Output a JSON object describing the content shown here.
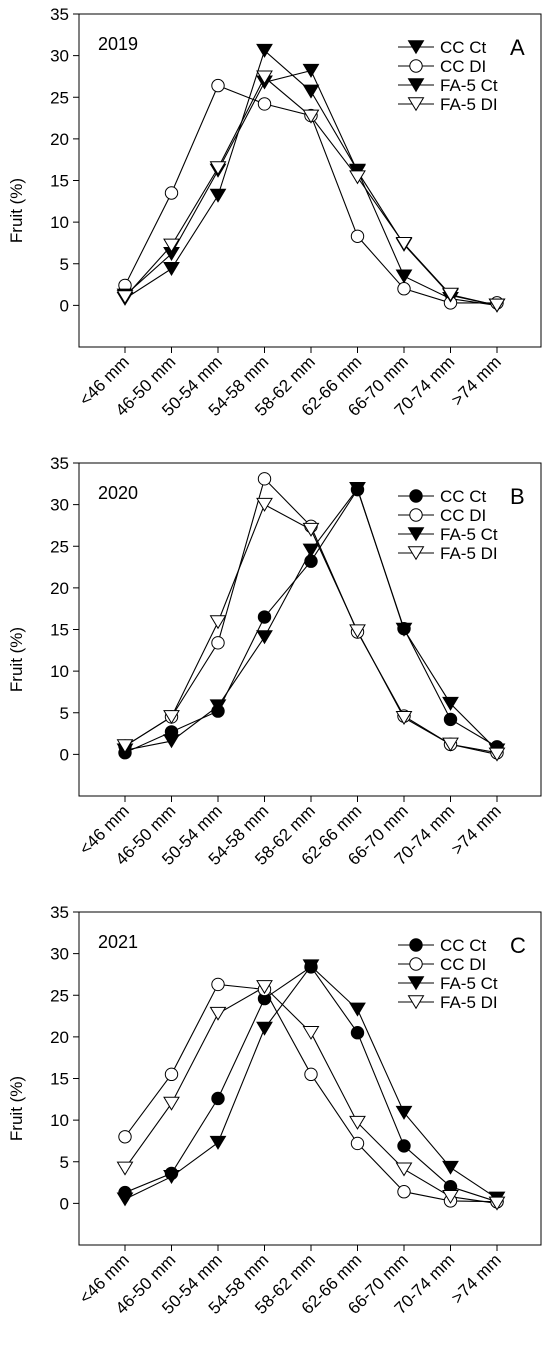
{
  "chart_data": [
    {
      "type": "line",
      "panel_letter": "A",
      "year_label": "2019",
      "ylabel": "Fruit (%)",
      "ylim": [
        -5,
        35
      ],
      "yticks": [
        0,
        5,
        10,
        15,
        20,
        25,
        30,
        35
      ],
      "categories": [
        "<46 mm",
        "46-50 mm",
        "50-54 mm",
        "54-58 mm",
        "58-62 mm",
        "62-66 mm",
        "66-70 mm",
        "70-74 mm",
        ">74 mm"
      ],
      "series": [
        {
          "name": "CC Ct",
          "marker": "triangle-down-filled",
          "values": [
            0.8,
            4.4,
            13.2,
            30.6,
            25.7,
            16.2,
            3.5,
            0.8,
            0
          ]
        },
        {
          "name": "CC DI",
          "marker": "circle-open",
          "values": [
            2.4,
            13.5,
            26.4,
            24.2,
            22.8,
            8.3,
            2.0,
            0.3,
            0.3
          ]
        },
        {
          "name": "FA-5 Ct",
          "marker": "triangle-down-filled",
          "values": [
            1.2,
            6.2,
            16.2,
            26.8,
            28.2,
            16.1,
            7.3,
            1.2,
            0
          ]
        },
        {
          "name": "FA-5 DI",
          "marker": "triangle-down-open",
          "values": [
            1.0,
            7.2,
            16.5,
            27.4,
            22.7,
            15.4,
            7.4,
            1.3,
            0
          ]
        }
      ]
    },
    {
      "type": "line",
      "panel_letter": "B",
      "year_label": "2020",
      "ylabel": "Fruit (%)",
      "ylim": [
        -5,
        35
      ],
      "yticks": [
        0,
        5,
        10,
        15,
        20,
        25,
        30,
        35
      ],
      "categories": [
        "<46 mm",
        "46-50 mm",
        "50-54 mm",
        "54-58 mm",
        "58-62 mm",
        "62-66 mm",
        "66-70 mm",
        "70-74 mm",
        ">74 mm"
      ],
      "series": [
        {
          "name": "CC Ct",
          "marker": "circle-filled",
          "values": [
            0.2,
            2.7,
            5.2,
            16.5,
            23.2,
            31.8,
            15.1,
            4.2,
            0.9
          ]
        },
        {
          "name": "CC DI",
          "marker": "circle-open",
          "values": [
            1.0,
            4.5,
            13.4,
            33.1,
            27.4,
            14.7,
            4.6,
            1.2,
            0.2
          ]
        },
        {
          "name": "FA-5 Ct",
          "marker": "triangle-down-filled",
          "values": [
            0.5,
            1.6,
            5.8,
            14.1,
            24.5,
            31.9,
            15.0,
            6.1,
            0.5
          ]
        },
        {
          "name": "FA-5 DI",
          "marker": "triangle-down-open",
          "values": [
            1.0,
            4.5,
            15.9,
            30.0,
            27.0,
            14.8,
            4.4,
            1.2,
            0
          ]
        }
      ]
    },
    {
      "type": "line",
      "panel_letter": "C",
      "year_label": "2021",
      "ylabel": "Fruit (%)",
      "ylim": [
        -5,
        35
      ],
      "yticks": [
        0,
        5,
        10,
        15,
        20,
        25,
        30,
        35
      ],
      "categories": [
        "<46 mm",
        "46-50 mm",
        "50-54 mm",
        "54-58 mm",
        "58-62 mm",
        "62-66 mm",
        "66-70 mm",
        "70-74 mm",
        ">74 mm"
      ],
      "series": [
        {
          "name": "CC Ct",
          "marker": "circle-filled",
          "values": [
            1.3,
            3.6,
            12.6,
            24.6,
            28.4,
            20.5,
            6.9,
            2.0,
            0.2
          ]
        },
        {
          "name": "CC DI",
          "marker": "circle-open",
          "values": [
            8.0,
            15.5,
            26.3,
            25.7,
            15.5,
            7.2,
            1.4,
            0.3,
            0.2
          ]
        },
        {
          "name": "FA-5 Ct",
          "marker": "triangle-down-filled",
          "values": [
            0.5,
            3.2,
            7.3,
            21.0,
            28.5,
            23.3,
            10.9,
            4.3,
            0.6
          ]
        },
        {
          "name": "FA-5 DI",
          "marker": "triangle-down-open",
          "values": [
            4.2,
            12.0,
            22.8,
            26.0,
            20.5,
            9.7,
            4.1,
            0.8,
            0
          ]
        }
      ]
    }
  ]
}
